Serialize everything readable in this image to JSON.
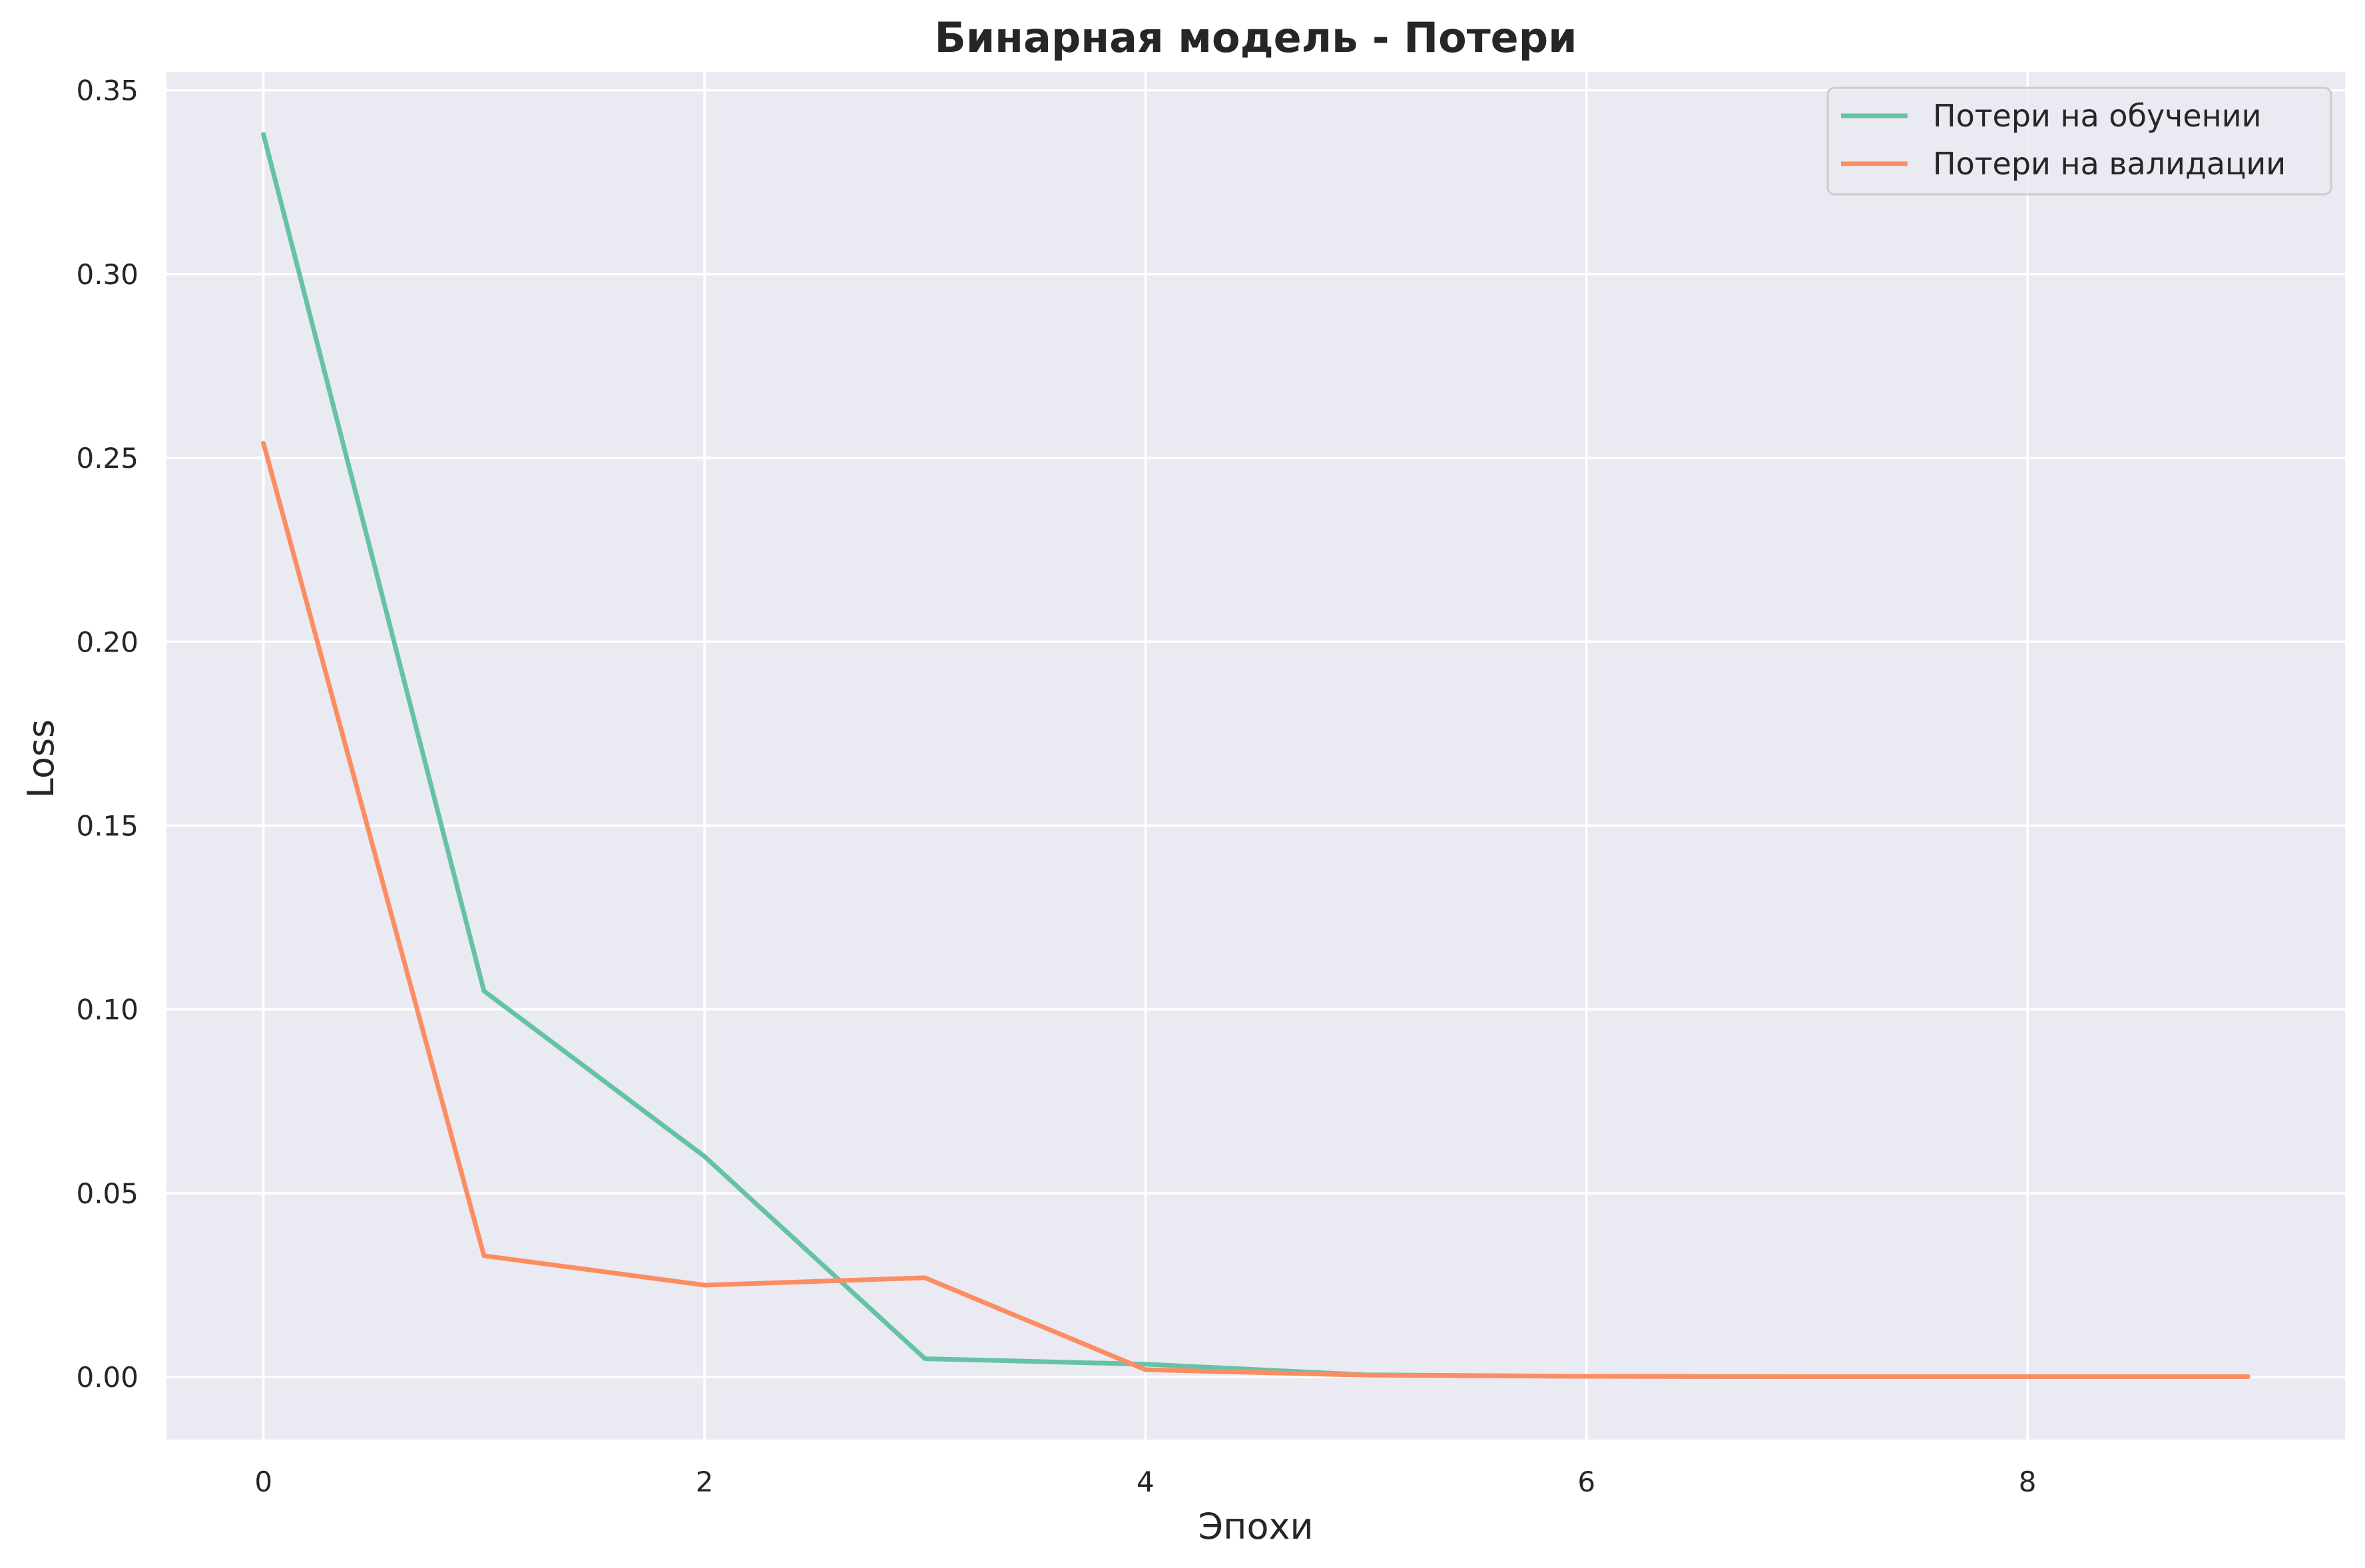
{
  "chart_data": {
    "type": "line",
    "title": "Бинарная модель - Потери",
    "xlabel": "Эпохи",
    "ylabel": "Loss",
    "x": [
      0,
      1,
      2,
      3,
      4,
      5,
      6,
      7,
      8,
      9
    ],
    "xlim": [
      -0.44,
      9.44
    ],
    "ylim": [
      -0.017,
      0.355
    ],
    "x_ticks": [
      0,
      2,
      4,
      6,
      8
    ],
    "x_tick_labels": [
      "0",
      "2",
      "4",
      "6",
      "8"
    ],
    "y_ticks": [
      0.0,
      0.05,
      0.1,
      0.15,
      0.2,
      0.25,
      0.3,
      0.35
    ],
    "y_tick_labels": [
      "0.00",
      "0.05",
      "0.10",
      "0.15",
      "0.20",
      "0.25",
      "0.30",
      "0.35"
    ],
    "grid": true,
    "legend_position": "top-right",
    "series": [
      {
        "name": "Потери на обучении",
        "color": "#66c2a5",
        "values": [
          0.338,
          0.105,
          0.06,
          0.005,
          0.0035,
          0.0006,
          0.0002,
          0.0001,
          0.0001,
          0.0001
        ]
      },
      {
        "name": "Потери на валидации",
        "color": "#fc8d62",
        "values": [
          0.254,
          0.033,
          0.025,
          0.027,
          0.002,
          0.0005,
          0.0002,
          0.0001,
          0.0001,
          0.0001
        ]
      }
    ]
  }
}
